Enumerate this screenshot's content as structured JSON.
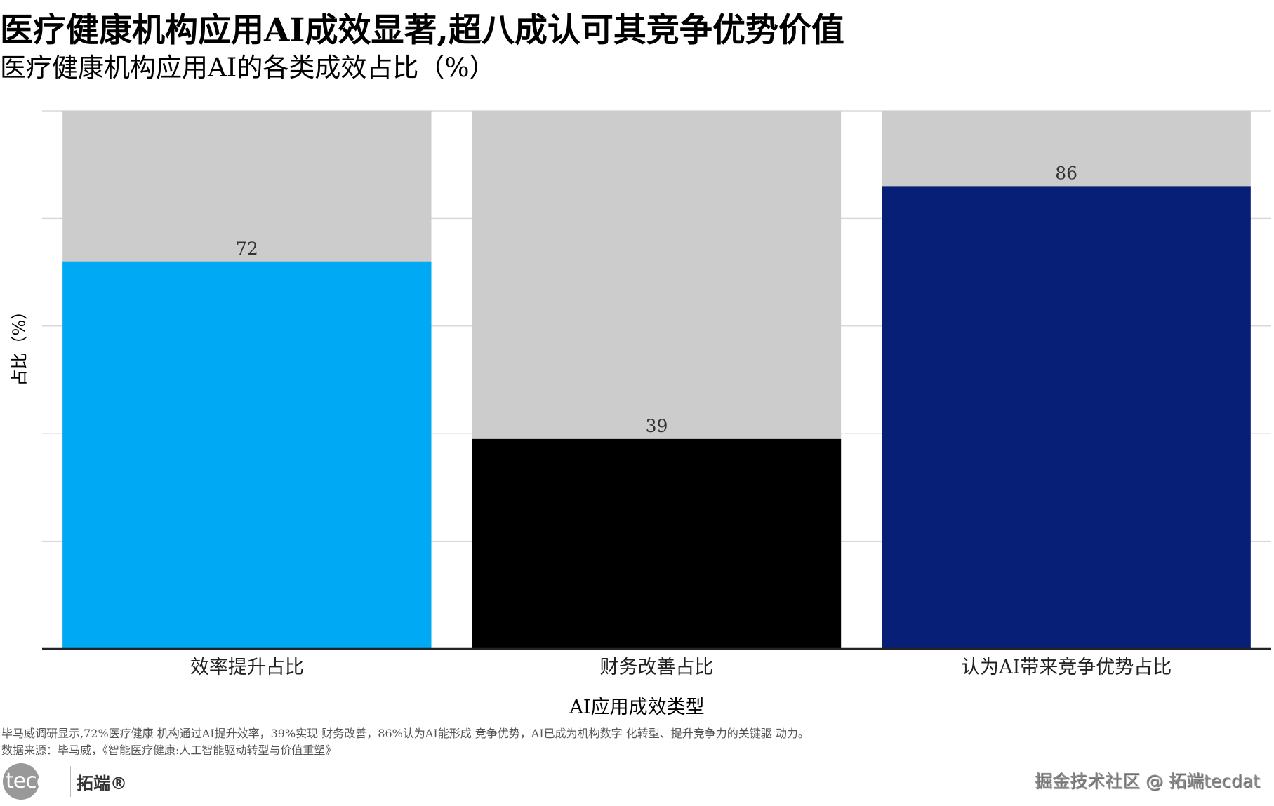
{
  "chart_data": {
    "type": "bar",
    "title": "医疗健康机构应用AI成效显著,超八成认可其竞争优势价值",
    "subtitle": "医疗健康机构应用AI的各类成效占比（%）",
    "categories": [
      "效率提升占比",
      "财务改善占比",
      "认为AI带来竞争优势占比"
    ],
    "values": [
      72,
      39,
      86
    ],
    "data_labels": [
      "72",
      "39",
      "86"
    ],
    "background_value": 100,
    "colors": [
      "#00a9f4",
      "#000000",
      "#081f78"
    ],
    "background_color": "#cccccc",
    "xlabel": "AI应用成效类型",
    "ylabel": "占比（%）",
    "ylim": [
      0,
      100
    ],
    "grid": true
  },
  "footer": {
    "note": "毕马威调研显示,72%医疗健康 机构通过AI提升效率，39%实现 财务改善，86%认为AI能形成 竞争优势，AI已成为机构数字 化转型、提升竞争力的关键驱 动力。",
    "source": "数据来源：毕马威，《智能医疗健康:人工智能驱动转型与价值重塑》",
    "logo_text": "tecdat",
    "logo_cn": "拓端®",
    "watermark": "掘金技术社区 @ 拓端tecdat"
  }
}
